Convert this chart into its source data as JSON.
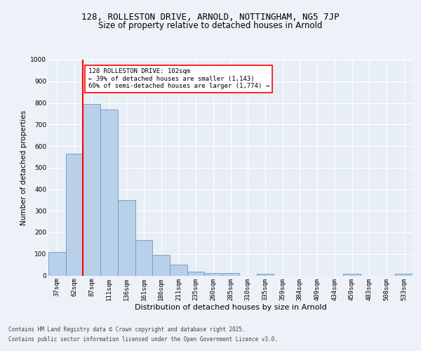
{
  "title1": "128, ROLLESTON DRIVE, ARNOLD, NOTTINGHAM, NG5 7JP",
  "title2": "Size of property relative to detached houses in Arnold",
  "xlabel": "Distribution of detached houses by size in Arnold",
  "ylabel": "Number of detached properties",
  "categories": [
    "37sqm",
    "62sqm",
    "87sqm",
    "111sqm",
    "136sqm",
    "161sqm",
    "186sqm",
    "211sqm",
    "235sqm",
    "260sqm",
    "285sqm",
    "310sqm",
    "335sqm",
    "359sqm",
    "384sqm",
    "409sqm",
    "434sqm",
    "459sqm",
    "483sqm",
    "508sqm",
    "533sqm"
  ],
  "values": [
    110,
    565,
    795,
    770,
    350,
    165,
    97,
    52,
    18,
    12,
    11,
    0,
    8,
    0,
    0,
    0,
    0,
    7,
    0,
    0,
    8
  ],
  "bar_color": "#b8d0e8",
  "bar_edge_color": "#6699cc",
  "vline_color": "red",
  "vline_x_index": 2,
  "annotation_text": "128 ROLLESTON DRIVE: 102sqm\n← 39% of detached houses are smaller (1,143)\n60% of semi-detached houses are larger (1,774) →",
  "annotation_box_color": "white",
  "annotation_box_edge_color": "red",
  "ylim": [
    0,
    1000
  ],
  "yticks": [
    0,
    100,
    200,
    300,
    400,
    500,
    600,
    700,
    800,
    900,
    1000
  ],
  "footer1": "Contains HM Land Registry data © Crown copyright and database right 2025.",
  "footer2": "Contains public sector information licensed under the Open Government Licence v3.0.",
  "bg_color": "#eef2f8",
  "plot_bg_color": "#e8eef6",
  "grid_color": "white",
  "title_fontsize": 9,
  "subtitle_fontsize": 8.5,
  "xlabel_fontsize": 8,
  "ylabel_fontsize": 7.5,
  "tick_fontsize": 6.5,
  "annotation_fontsize": 6.5,
  "footer_fontsize": 5.5
}
